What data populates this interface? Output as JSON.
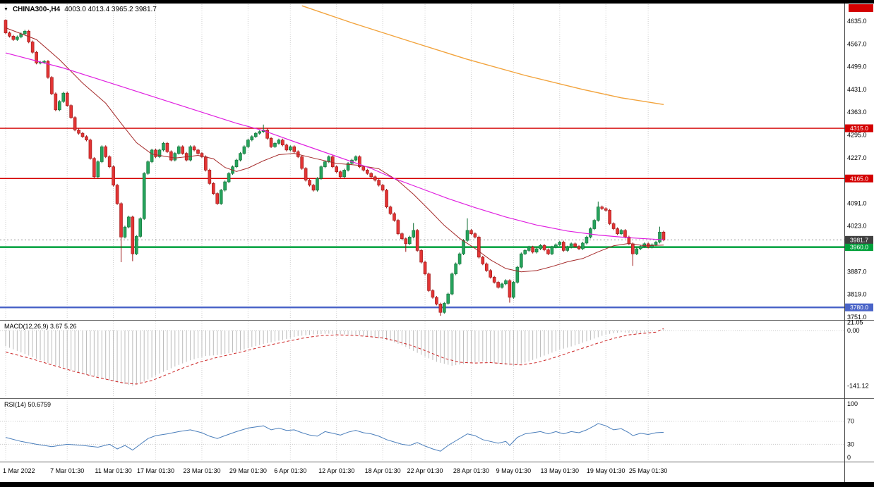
{
  "title_bar": {
    "marker": "▼",
    "symbol_period": "CHINA300-,H4",
    "ohlc": "4003.0 4013.4 3965.2 3981.7"
  },
  "price_axis": {
    "tick_labels": [
      "4635.0",
      "4567.0",
      "4499.0",
      "4431.0",
      "4363.0",
      "4295.0",
      "4227.0",
      "4091.0",
      "4023.0",
      "3887.0",
      "3819.0",
      "3751.0"
    ]
  },
  "time_axis": {
    "ticks": [
      {
        "label": "1 Mar 2022",
        "index": 0
      },
      {
        "label": "7 Mar 01:30",
        "index": 16
      },
      {
        "label": "11 Mar 01:30",
        "index": 28
      },
      {
        "label": "17 Mar 01:30",
        "index": 39
      },
      {
        "label": "23 Mar 01:30",
        "index": 51
      },
      {
        "label": "29 Mar 01:30",
        "index": 63
      },
      {
        "label": "6 Apr 01:30",
        "index": 74
      },
      {
        "label": "12 Apr 01:30",
        "index": 86
      },
      {
        "label": "18 Apr 01:30",
        "index": 98
      },
      {
        "label": "22 Apr 01:30",
        "index": 109
      },
      {
        "label": "28 Apr 01:30",
        "index": 121
      },
      {
        "label": "9 May 01:30",
        "index": 132
      },
      {
        "label": "13 May 01:30",
        "index": 144
      },
      {
        "label": "19 May 01:30",
        "index": 156
      },
      {
        "label": "25 May 01:30",
        "index": 167
      }
    ]
  },
  "chart_data": [
    {
      "type": "candlestick",
      "title": "CHINA300-,H4",
      "symbol": "CHINA300-",
      "timeframe": "H4",
      "ohlc_display": {
        "open": 4003.0,
        "high": 4013.4,
        "low": 3965.2,
        "close": 3981.7
      },
      "ylim": [
        3740,
        4660
      ],
      "first_open": 4638,
      "closes": [
        4600,
        4590,
        4580,
        4588,
        4597,
        4605,
        4573,
        4542,
        4510,
        4512,
        4515,
        4467,
        4418,
        4370,
        4395,
        4420,
        4383,
        4347,
        4310,
        4300,
        4290,
        4280,
        4225,
        4170,
        4215,
        4260,
        4230,
        4200,
        4145,
        4090,
        3990,
        4020,
        4050,
        3940,
        3992,
        4045,
        4180,
        4215,
        4250,
        4230,
        4250,
        4270,
        4245,
        4220,
        4240,
        4260,
        4240,
        4220,
        4260,
        4250,
        4240,
        4230,
        4190,
        4150,
        4120,
        4090,
        4130,
        4155,
        4180,
        4200,
        4220,
        4240,
        4260,
        4280,
        4290,
        4300,
        4305,
        4310,
        4285,
        4260,
        4270,
        4280,
        4265,
        4250,
        4260,
        4245,
        4230,
        4195,
        4160,
        4145,
        4130,
        4165,
        4200,
        4215,
        4230,
        4200,
        4185,
        4170,
        4190,
        4210,
        4220,
        4230,
        4200,
        4190,
        4180,
        4170,
        4160,
        4145,
        4130,
        4080,
        4060,
        4040,
        4000,
        3985,
        3970,
        3990,
        4010,
        3950,
        3915,
        3880,
        3830,
        3810,
        3790,
        3765,
        3792,
        3820,
        3880,
        3910,
        3940,
        3980,
        4010,
        4000,
        3990,
        3930,
        3910,
        3890,
        3870,
        3855,
        3840,
        3850,
        3860,
        3810,
        3855,
        3900,
        3940,
        3950,
        3960,
        3945,
        3955,
        3965,
        3952,
        3940,
        3960,
        3967,
        3975,
        3950,
        3960,
        3970,
        3962,
        3955,
        3972,
        3990,
        4015,
        4040,
        4080,
        4075,
        4070,
        4030,
        4015,
        4000,
        4010,
        3990,
        3970,
        3940,
        3955,
        3962,
        3970,
        3960,
        3967,
        3975,
        4005,
        3981.7
      ],
      "wick_overrides": {
        "0": {
          "high": 4640
        },
        "30": {
          "low": 3915
        },
        "33": {
          "low": 3918
        },
        "67": {
          "high": 4326
        },
        "104": {
          "low": 3946
        },
        "106": {
          "high": 4032
        },
        "113": {
          "low": 3755
        },
        "120": {
          "high": 4046
        },
        "131": {
          "low": 3794
        },
        "154": {
          "high": 4096
        },
        "163": {
          "low": 3904
        },
        "170": {
          "high": 4021
        }
      },
      "current_price": 3981.7,
      "current_price_label": "3981.7",
      "hlines": [
        {
          "price": 4315.0,
          "label": "4315.0",
          "color": "#d40000",
          "width": 1.5
        },
        {
          "price": 4165.0,
          "label": "4165.0",
          "color": "#d40000",
          "width": 1.5
        },
        {
          "price": 3960.0,
          "label": "3960.0",
          "color": "#00a13c",
          "width": 2.5
        },
        {
          "price": 3780.0,
          "label": "3780.0",
          "color": "#4a64c8",
          "width": 2.5
        }
      ],
      "moving_averages": [
        {
          "name": "fast-red",
          "color": "#a52a2a",
          "width": 1,
          "points": [
            [
              0,
              4615
            ],
            [
              8,
              4580
            ],
            [
              14,
              4520
            ],
            [
              20,
              4450
            ],
            [
              26,
              4390
            ],
            [
              30,
              4330
            ],
            [
              34,
              4272
            ],
            [
              38,
              4238
            ],
            [
              44,
              4226
            ],
            [
              50,
              4234
            ],
            [
              54,
              4224
            ],
            [
              57,
              4198
            ],
            [
              60,
              4186
            ],
            [
              63,
              4196
            ],
            [
              67,
              4218
            ],
            [
              71,
              4236
            ],
            [
              75,
              4240
            ],
            [
              80,
              4226
            ],
            [
              86,
              4210
            ],
            [
              92,
              4204
            ],
            [
              97,
              4194
            ],
            [
              102,
              4158
            ],
            [
              106,
              4118
            ],
            [
              110,
              4072
            ],
            [
              114,
              4025
            ],
            [
              118,
              3986
            ],
            [
              122,
              3956
            ],
            [
              126,
              3922
            ],
            [
              130,
              3896
            ],
            [
              134,
              3886
            ],
            [
              138,
              3890
            ],
            [
              142,
              3902
            ],
            [
              146,
              3916
            ],
            [
              150,
              3926
            ],
            [
              154,
              3946
            ],
            [
              158,
              3964
            ],
            [
              162,
              3971
            ],
            [
              166,
              3964
            ],
            [
              171,
              3966
            ]
          ]
        },
        {
          "name": "mid-magenta",
          "color": "#e020e0",
          "width": 1.2,
          "points": [
            [
              0,
              4540
            ],
            [
              15,
              4495
            ],
            [
              30,
              4440
            ],
            [
              45,
              4385
            ],
            [
              60,
              4330
            ],
            [
              67,
              4308
            ],
            [
              75,
              4275
            ],
            [
              85,
              4235
            ],
            [
              95,
              4195
            ],
            [
              101,
              4165
            ],
            [
              108,
              4135
            ],
            [
              115,
              4105
            ],
            [
              122,
              4078
            ],
            [
              130,
              4050
            ],
            [
              138,
              4026
            ],
            [
              146,
              4008
            ],
            [
              154,
              3996
            ],
            [
              162,
              3988
            ],
            [
              171,
              3982
            ]
          ]
        },
        {
          "name": "slow-orange",
          "color": "#f2a33c",
          "width": 1.4,
          "points": [
            [
              77,
              4681
            ],
            [
              90,
              4630
            ],
            [
              105,
              4575
            ],
            [
              120,
              4521
            ],
            [
              135,
              4473
            ],
            [
              150,
              4431
            ],
            [
              160,
              4406
            ],
            [
              171,
              4386
            ]
          ]
        }
      ],
      "colors": {
        "bull": "#26a35c",
        "bull_border": "#0e6e33",
        "bear": "#e23434",
        "bear_border": "#9c1212"
      }
    },
    {
      "type": "bar",
      "name": "MACD",
      "label": "MACD(12,26,9) 3.67 5.26",
      "params": [
        12,
        26,
        9
      ],
      "macd_value": 3.67,
      "signal_value": 5.26,
      "axis_labels": [
        {
          "text": "21.05",
          "value": 21.05
        },
        {
          "text": "0.00",
          "value": 0
        },
        {
          "text": "-141.12",
          "value": -141.12
        }
      ],
      "histogram_anchors": [
        [
          0,
          -40
        ],
        [
          5,
          -60
        ],
        [
          10,
          -80
        ],
        [
          15,
          -95
        ],
        [
          20,
          -110
        ],
        [
          25,
          -122
        ],
        [
          30,
          -135
        ],
        [
          33,
          -141
        ],
        [
          36,
          -130
        ],
        [
          40,
          -110
        ],
        [
          44,
          -92
        ],
        [
          48,
          -76
        ],
        [
          52,
          -65
        ],
        [
          56,
          -62
        ],
        [
          60,
          -54
        ],
        [
          64,
          -42
        ],
        [
          68,
          -32
        ],
        [
          72,
          -24
        ],
        [
          76,
          -14
        ],
        [
          80,
          -10
        ],
        [
          84,
          -8
        ],
        [
          88,
          -10
        ],
        [
          92,
          -12
        ],
        [
          96,
          -18
        ],
        [
          100,
          -26
        ],
        [
          104,
          -42
        ],
        [
          108,
          -62
        ],
        [
          112,
          -80
        ],
        [
          116,
          -90
        ],
        [
          120,
          -84
        ],
        [
          124,
          -79
        ],
        [
          128,
          -85
        ],
        [
          132,
          -90
        ],
        [
          136,
          -79
        ],
        [
          140,
          -64
        ],
        [
          144,
          -49
        ],
        [
          148,
          -38
        ],
        [
          152,
          -24
        ],
        [
          156,
          -10
        ],
        [
          160,
          -4
        ],
        [
          164,
          -8
        ],
        [
          168,
          -2
        ],
        [
          171,
          3.67
        ]
      ],
      "signal_anchors": [
        [
          0,
          -55
        ],
        [
          6,
          -70
        ],
        [
          12,
          -88
        ],
        [
          18,
          -105
        ],
        [
          24,
          -120
        ],
        [
          30,
          -133
        ],
        [
          34,
          -137
        ],
        [
          38,
          -128
        ],
        [
          42,
          -112
        ],
        [
          46,
          -96
        ],
        [
          50,
          -82
        ],
        [
          54,
          -71
        ],
        [
          58,
          -62
        ],
        [
          62,
          -53
        ],
        [
          66,
          -43
        ],
        [
          70,
          -34
        ],
        [
          74,
          -26
        ],
        [
          78,
          -18
        ],
        [
          82,
          -13
        ],
        [
          86,
          -11
        ],
        [
          90,
          -12
        ],
        [
          94,
          -15
        ],
        [
          98,
          -19
        ],
        [
          102,
          -28
        ],
        [
          106,
          -40
        ],
        [
          110,
          -55
        ],
        [
          114,
          -71
        ],
        [
          118,
          -81
        ],
        [
          122,
          -83
        ],
        [
          126,
          -82
        ],
        [
          130,
          -85
        ],
        [
          134,
          -88
        ],
        [
          138,
          -82
        ],
        [
          142,
          -71
        ],
        [
          146,
          -58
        ],
        [
          150,
          -45
        ],
        [
          154,
          -32
        ],
        [
          158,
          -20
        ],
        [
          162,
          -11
        ],
        [
          166,
          -7
        ],
        [
          169,
          -4
        ],
        [
          171,
          5.26
        ]
      ],
      "colors": {
        "histogram": "#bbbbbb",
        "signal": "#cc2222"
      }
    },
    {
      "type": "line",
      "name": "RSI",
      "label": "RSI(14) 50.6759",
      "params": [
        14
      ],
      "value": 50.6759,
      "axis_labels": [
        {
          "text": "100",
          "value": 100
        },
        {
          "text": "70",
          "value": 70
        },
        {
          "text": "30",
          "value": 30
        },
        {
          "text": "0",
          "value": 0
        }
      ],
      "levels": [
        70,
        30
      ],
      "points": [
        [
          0,
          42
        ],
        [
          4,
          35
        ],
        [
          8,
          30
        ],
        [
          12,
          26
        ],
        [
          16,
          30
        ],
        [
          20,
          28
        ],
        [
          24,
          25
        ],
        [
          27,
          30
        ],
        [
          29,
          22
        ],
        [
          31,
          28
        ],
        [
          33,
          20
        ],
        [
          35,
          30
        ],
        [
          37,
          40
        ],
        [
          39,
          45
        ],
        [
          42,
          48
        ],
        [
          45,
          52
        ],
        [
          48,
          55
        ],
        [
          51,
          50
        ],
        [
          53,
          44
        ],
        [
          55,
          40
        ],
        [
          57,
          45
        ],
        [
          60,
          52
        ],
        [
          63,
          58
        ],
        [
          67,
          62
        ],
        [
          69,
          55
        ],
        [
          71,
          58
        ],
        [
          73,
          54
        ],
        [
          75,
          55
        ],
        [
          77,
          50
        ],
        [
          79,
          46
        ],
        [
          81,
          44
        ],
        [
          83,
          52
        ],
        [
          85,
          49
        ],
        [
          87,
          46
        ],
        [
          89,
          51
        ],
        [
          91,
          54
        ],
        [
          93,
          50
        ],
        [
          95,
          48
        ],
        [
          97,
          44
        ],
        [
          99,
          38
        ],
        [
          101,
          34
        ],
        [
          103,
          30
        ],
        [
          105,
          28
        ],
        [
          107,
          33
        ],
        [
          109,
          27
        ],
        [
          111,
          22
        ],
        [
          113,
          18
        ],
        [
          115,
          28
        ],
        [
          117,
          36
        ],
        [
          119,
          44
        ],
        [
          120,
          48
        ],
        [
          122,
          45
        ],
        [
          124,
          38
        ],
        [
          126,
          35
        ],
        [
          128,
          32
        ],
        [
          130,
          35
        ],
        [
          131,
          28
        ],
        [
          133,
          42
        ],
        [
          135,
          48
        ],
        [
          137,
          50
        ],
        [
          139,
          52
        ],
        [
          141,
          48
        ],
        [
          143,
          52
        ],
        [
          145,
          48
        ],
        [
          147,
          52
        ],
        [
          149,
          50
        ],
        [
          151,
          55
        ],
        [
          153,
          62
        ],
        [
          154,
          66
        ],
        [
          156,
          62
        ],
        [
          158,
          55
        ],
        [
          160,
          57
        ],
        [
          162,
          50
        ],
        [
          163,
          45
        ],
        [
          165,
          49
        ],
        [
          167,
          47
        ],
        [
          169,
          50
        ],
        [
          171,
          50.68
        ]
      ],
      "color": "#4a7ebb"
    }
  ],
  "misc": {
    "offscreen_badge_color": "#d40000",
    "current_badge_bg": "#404040",
    "grid_color": "#d0d0d0",
    "separator_color": "#666666",
    "current_line_color": "#909090"
  }
}
